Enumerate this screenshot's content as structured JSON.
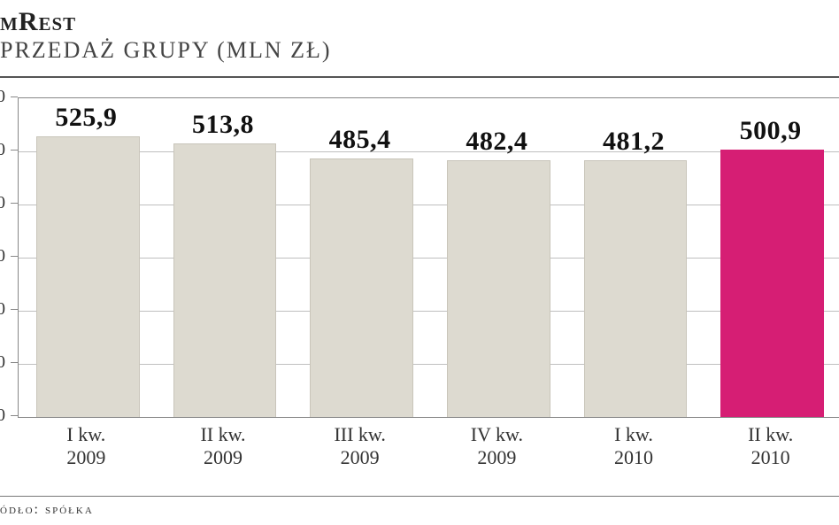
{
  "title": {
    "main": "mRest",
    "sub": "przedaż grupy (mln zł)",
    "main_fontsize": 30,
    "sub_fontsize": 26,
    "color": "#222222"
  },
  "chart": {
    "type": "bar",
    "ylim": [
      0,
      600
    ],
    "ytick_step": 100,
    "grid_color": "#bfbfbf",
    "axis_color": "#888888",
    "background_color": "#ffffff",
    "bar_default_color": "#dddad0",
    "bar_highlight_color": "#d61e74",
    "bar_border_color": "#c9c5ba",
    "value_label_fontsize": 30,
    "xlabel_fontsize": 22,
    "bars": [
      {
        "label_top": "I kw.",
        "label_bottom": "2009",
        "value": 525.9,
        "value_text": "525,9",
        "highlight": false
      },
      {
        "label_top": "II kw.",
        "label_bottom": "2009",
        "value": 513.8,
        "value_text": "513,8",
        "highlight": false
      },
      {
        "label_top": "III kw.",
        "label_bottom": "2009",
        "value": 485.4,
        "value_text": "485,4",
        "highlight": false
      },
      {
        "label_top": "IV kw.",
        "label_bottom": "2009",
        "value": 482.4,
        "value_text": "482,4",
        "highlight": false
      },
      {
        "label_top": "I kw.",
        "label_bottom": "2010",
        "value": 481.2,
        "value_text": "481,2",
        "highlight": false
      },
      {
        "label_top": "II kw.",
        "label_bottom": "2010",
        "value": 500.9,
        "value_text": "500,9",
        "highlight": true
      }
    ]
  },
  "source": {
    "label": "ódło: spółka"
  }
}
